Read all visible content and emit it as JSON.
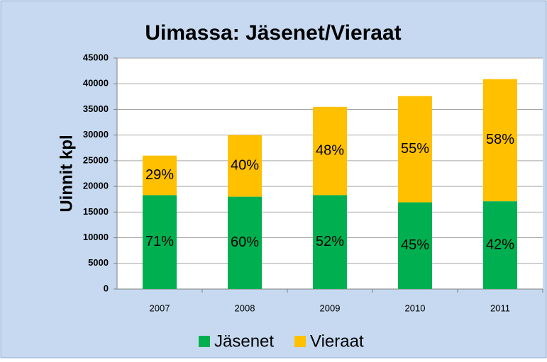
{
  "chart_data": {
    "type": "stacked_bar",
    "title": "Uimassa: Jäsenet/Vieraat",
    "y_label": "Uinnit kpl",
    "categories": [
      "2007",
      "2008",
      "2009",
      "2010",
      "2011"
    ],
    "series": [
      {
        "name": "Jäsenet",
        "color": "#00b050",
        "values": [
          18300,
          18000,
          18300,
          16900,
          17100
        ],
        "share_labels": [
          "71%",
          "60%",
          "52%",
          "45%",
          "42%"
        ]
      },
      {
        "name": "Vieraat",
        "color": "#ffc000",
        "values": [
          7700,
          12000,
          17200,
          20700,
          23800
        ],
        "share_labels": [
          "29%",
          "40%",
          "48%",
          "55%",
          "58%"
        ]
      }
    ],
    "ylim": [
      0,
      45000
    ],
    "yticks": [
      0,
      5000,
      10000,
      15000,
      20000,
      25000,
      30000,
      35000,
      40000,
      45000
    ],
    "grid": true
  }
}
